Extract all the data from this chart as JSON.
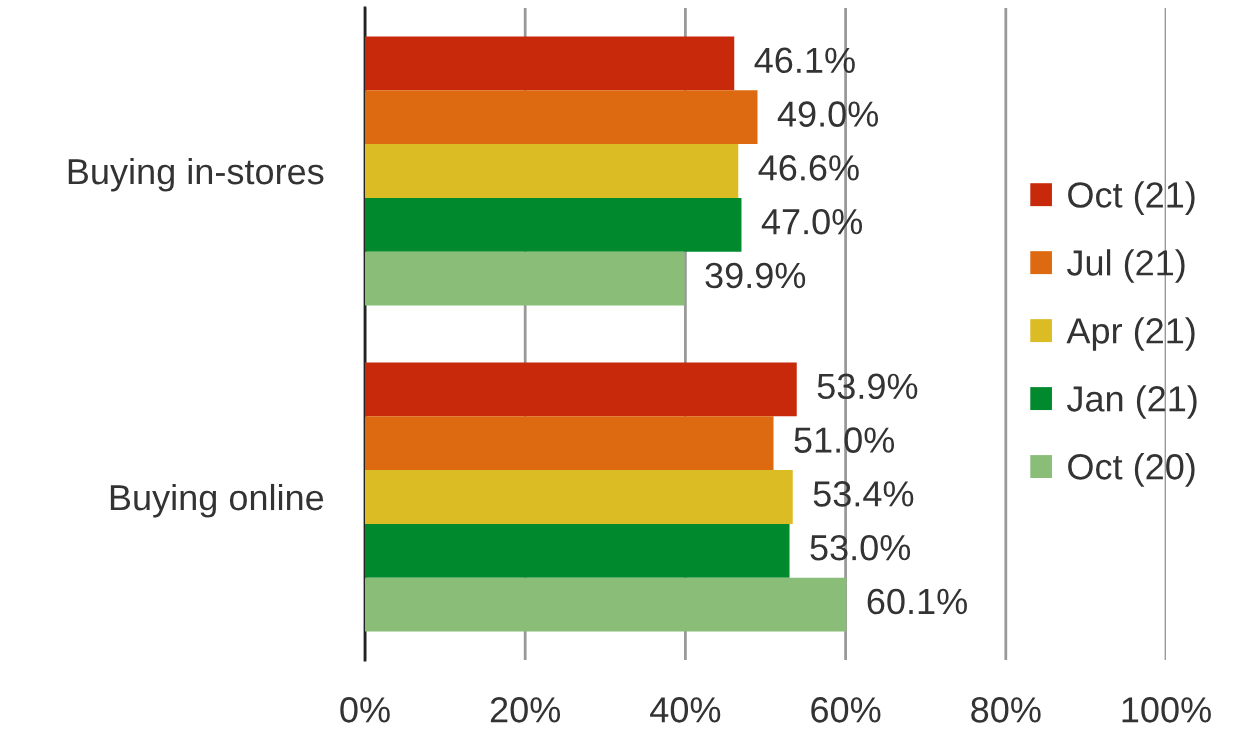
{
  "chart_data": {
    "type": "bar",
    "orientation": "horizontal",
    "categories": [
      "Buying in-stores",
      "Buying online"
    ],
    "series": [
      {
        "name": "Oct (21)",
        "color": "#c8290a",
        "values": [
          46.1,
          53.9
        ],
        "value_labels": [
          "46.1%",
          "53.9%"
        ]
      },
      {
        "name": "Jul (21)",
        "color": "#dd6a10",
        "values": [
          49.0,
          51.0
        ],
        "value_labels": [
          "49.0%",
          "51.0%"
        ]
      },
      {
        "name": "Apr (21)",
        "color": "#dcbc25",
        "values": [
          46.6,
          53.4
        ],
        "value_labels": [
          "46.6%",
          "53.4%"
        ]
      },
      {
        "name": "Jan (21)",
        "color": "#00892d",
        "values": [
          47.0,
          53.0
        ],
        "value_labels": [
          "47.0%",
          "53.0%"
        ]
      },
      {
        "name": "Oct (20)",
        "color": "#8abd78",
        "values": [
          39.9,
          60.1
        ],
        "value_labels": [
          "39.9%",
          "60.1%"
        ]
      }
    ],
    "xlim": [
      0,
      100
    ],
    "xticks": [
      {
        "value": 0,
        "label": "0%"
      },
      {
        "value": 20,
        "label": "20%"
      },
      {
        "value": 40,
        "label": "40%"
      },
      {
        "value": 60,
        "label": "60%"
      },
      {
        "value": 80,
        "label": "80%"
      },
      {
        "value": 100,
        "label": "100%"
      }
    ],
    "grid": "x",
    "legend": "right"
  }
}
